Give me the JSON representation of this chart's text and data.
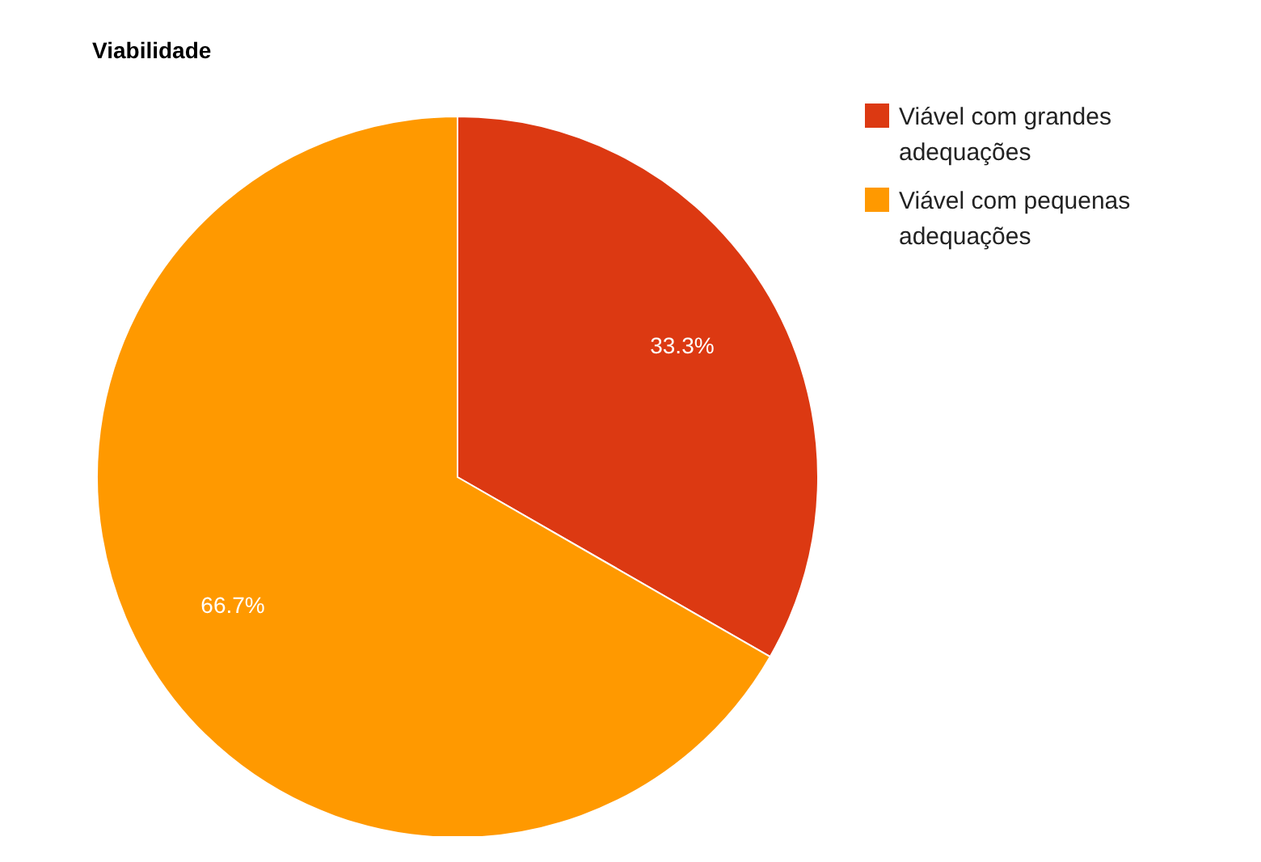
{
  "chart_data": {
    "type": "pie",
    "title": "Viabilidade",
    "categories": [
      "Viável com grandes adequações",
      "Viável com pequenas adequações"
    ],
    "values": [
      33.3,
      66.7
    ],
    "colors": [
      "#dc3912",
      "#ff9900"
    ],
    "value_labels": [
      "33.3%",
      "66.7%"
    ],
    "legend": "right"
  }
}
